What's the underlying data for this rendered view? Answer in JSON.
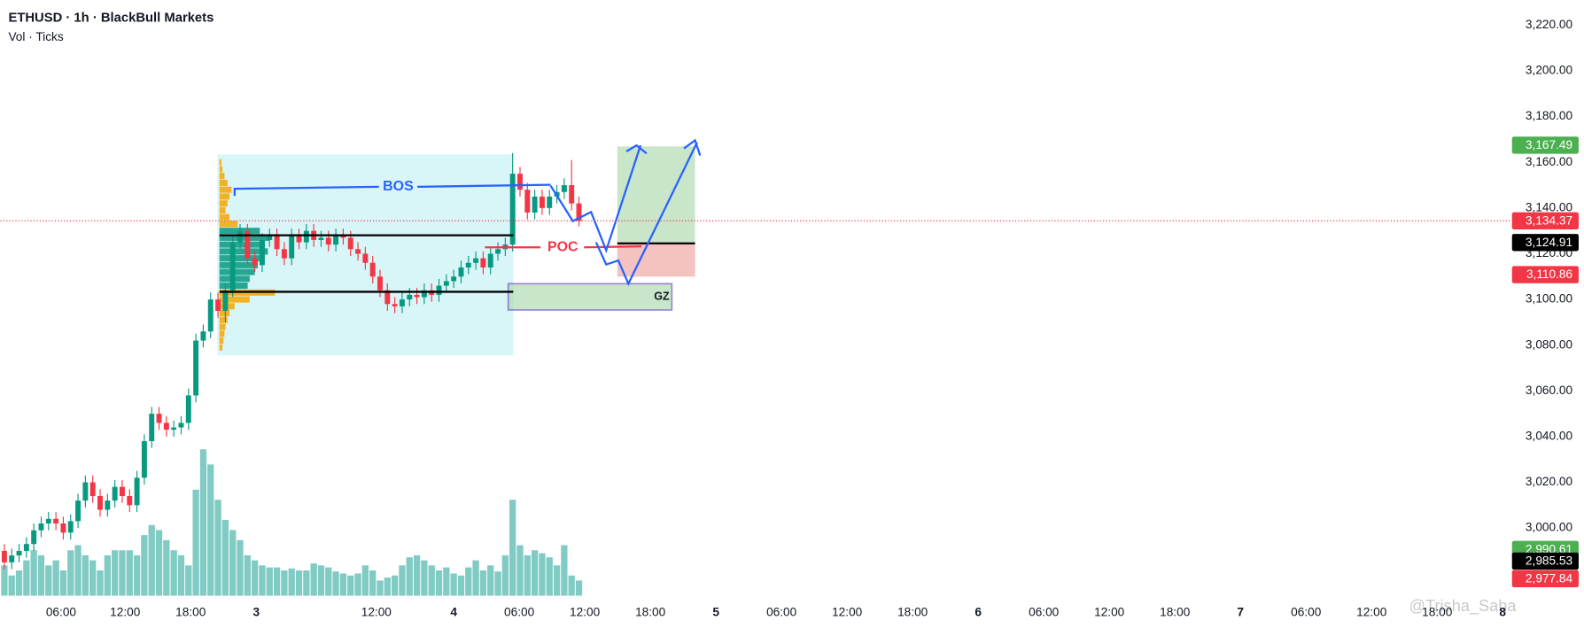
{
  "chart_data": {
    "type": "candlestick",
    "title": "ETHUSD · 1h · BlackBull Markets",
    "subtitle": "Vol · Ticks",
    "watermark": "@Trisha_Saha",
    "up_color": "#089981",
    "down_color": "#f23645",
    "volume_color": "#80cbc4",
    "grid": false,
    "ylim": [
      2970.4,
      3231
    ],
    "yticks": [
      {
        "value": 3000,
        "label": "3,000.00"
      },
      {
        "value": 3020,
        "label": "3,020.00"
      },
      {
        "value": 3040,
        "label": "3,040.00"
      },
      {
        "value": 3060,
        "label": "3,060.00"
      },
      {
        "value": 3080,
        "label": "3,080.00"
      },
      {
        "value": 3100,
        "label": "3,100.00"
      },
      {
        "value": 3120,
        "label": "3,120.00"
      },
      {
        "value": 3140,
        "label": "3,140.00"
      },
      {
        "value": 3160,
        "label": "3,160.00"
      },
      {
        "value": 3180,
        "label": "3,180.00"
      },
      {
        "value": 3200,
        "label": "3,200.00"
      },
      {
        "value": 3220,
        "label": "3,220.00"
      }
    ],
    "xlim": [
      -0.55,
      203.7
    ],
    "xticks": [
      {
        "value": 7.7,
        "label": "06:00"
      },
      {
        "value": 16.4,
        "label": "12:00"
      },
      {
        "value": 25.3,
        "label": "18:00"
      },
      {
        "value": 34.2,
        "label": "3"
      },
      {
        "value": 50.5,
        "label": "12:00"
      },
      {
        "value": 61,
        "label": "4"
      },
      {
        "value": 69.9,
        "label": "06:00"
      },
      {
        "value": 78.8,
        "label": "12:00"
      },
      {
        "value": 87.7,
        "label": "18:00"
      },
      {
        "value": 96.6,
        "label": "5"
      },
      {
        "value": 105.5,
        "label": "06:00"
      },
      {
        "value": 114.4,
        "label": "12:00"
      },
      {
        "value": 123.3,
        "label": "18:00"
      },
      {
        "value": 132.2,
        "label": "6"
      },
      {
        "value": 141.1,
        "label": "06:00"
      },
      {
        "value": 150,
        "label": "12:00"
      },
      {
        "value": 158.9,
        "label": "18:00"
      },
      {
        "value": 167.8,
        "label": "7"
      },
      {
        "value": 176.7,
        "label": "06:00"
      },
      {
        "value": 185.6,
        "label": "12:00"
      },
      {
        "value": 194.5,
        "label": "18:00"
      },
      {
        "value": 203.4,
        "label": "8"
      }
    ],
    "open": [
      2990,
      2985,
      2988,
      2990,
      2993,
      2999,
      3002,
      3004,
      3002,
      2998,
      3003,
      3012,
      3020,
      3014,
      3008,
      3012,
      3018,
      3014,
      3010,
      3022,
      3038,
      3050,
      3046,
      3043,
      3044,
      3046,
      3058,
      3082,
      3086,
      3100,
      3095,
      3104,
      3125,
      3130,
      3118,
      3115,
      3126,
      3128,
      3122,
      3118,
      3128,
      3125,
      3130,
      3126,
      3127,
      3124,
      3128,
      3127,
      3122,
      3120,
      3116,
      3110,
      3104,
      3098,
      3097,
      3100,
      3102,
      3101,
      3104,
      3102,
      3106,
      3108,
      3110,
      3114,
      3116,
      3118,
      3114,
      3120,
      3122,
      3124,
      3155,
      3148,
      3138,
      3145,
      3140,
      3145,
      3147,
      3150,
      3142
    ],
    "high": [
      2993,
      2991,
      2993,
      2996,
      3002,
      3005,
      3007,
      3007,
      3005,
      3006,
      3015,
      3023,
      3023,
      3017,
      3015,
      3021,
      3021,
      3017,
      3025,
      3041,
      3053,
      3053,
      3049,
      3047,
      3049,
      3061,
      3085,
      3089,
      3103,
      3103,
      3107,
      3128,
      3133,
      3133,
      3121,
      3129,
      3131,
      3131,
      3125,
      3131,
      3131,
      3133,
      3133,
      3130,
      3130,
      3131,
      3131,
      3130,
      3125,
      3123,
      3119,
      3113,
      3107,
      3101,
      3103,
      3105,
      3105,
      3107,
      3107,
      3109,
      3111,
      3113,
      3117,
      3119,
      3121,
      3121,
      3123,
      3125,
      3127,
      3164,
      3158,
      3151,
      3148,
      3148,
      3148,
      3150,
      3153,
      3161,
      3145
    ],
    "low": [
      2982,
      2982,
      2985,
      2987,
      2990,
      2996,
      2999,
      2999,
      2995,
      2995,
      3000,
      3009,
      3011,
      3005,
      3005,
      3009,
      3011,
      3007,
      3007,
      3019,
      3035,
      3043,
      3040,
      3040,
      3041,
      3043,
      3055,
      3079,
      3083,
      3092,
      3090,
      3101,
      3122,
      3115,
      3112,
      3112,
      3123,
      3119,
      3115,
      3115,
      3122,
      3122,
      3123,
      3123,
      3121,
      3121,
      3124,
      3119,
      3117,
      3113,
      3107,
      3101,
      3095,
      3094,
      3094,
      3097,
      3098,
      3098,
      3099,
      3099,
      3103,
      3105,
      3107,
      3111,
      3113,
      3111,
      3111,
      3117,
      3119,
      3121,
      3145,
      3135,
      3135,
      3137,
      3137,
      3142,
      3144,
      3139,
      3132
    ],
    "close": [
      2985,
      2988,
      2990,
      2993,
      2999,
      3002,
      3004,
      3002,
      2998,
      3003,
      3012,
      3020,
      3014,
      3008,
      3012,
      3018,
      3014,
      3010,
      3022,
      3038,
      3050,
      3046,
      3043,
      3044,
      3046,
      3058,
      3082,
      3086,
      3100,
      3095,
      3104,
      3125,
      3130,
      3118,
      3115,
      3126,
      3128,
      3122,
      3118,
      3128,
      3125,
      3130,
      3126,
      3127,
      3124,
      3128,
      3127,
      3122,
      3120,
      3116,
      3110,
      3104,
      3098,
      3097,
      3100,
      3102,
      3101,
      3104,
      3102,
      3106,
      3108,
      3110,
      3114,
      3116,
      3118,
      3114,
      3120,
      3122,
      3124,
      3155,
      3148,
      3138,
      3145,
      3140,
      3145,
      3147,
      3150,
      3142,
      3134.37
    ],
    "volume_ylim": [
      0,
      5900
    ],
    "volume": [
      300,
      200,
      250,
      350,
      450,
      400,
      300,
      350,
      250,
      450,
      500,
      400,
      350,
      250,
      400,
      450,
      450,
      450,
      400,
      600,
      700,
      650,
      550,
      450,
      400,
      300,
      1050,
      1450,
      1300,
      950,
      750,
      650,
      550,
      400,
      350,
      300,
      280,
      280,
      250,
      270,
      250,
      250,
      320,
      300,
      280,
      240,
      220,
      200,
      220,
      300,
      250,
      150,
      180,
      200,
      300,
      380,
      400,
      350,
      300,
      250,
      280,
      220,
      200,
      280,
      350,
      250,
      300,
      240,
      400,
      950,
      500,
      400,
      450,
      420,
      380,
      300,
      500,
      200,
      150
    ],
    "volume_profile": {
      "prices": [
        3160,
        3157,
        3154,
        3151,
        3148,
        3145,
        3142,
        3139,
        3136,
        3133,
        3130,
        3127,
        3124,
        3121,
        3118,
        3115,
        3112,
        3109,
        3106,
        3103,
        3100,
        3097,
        3094,
        3091,
        3088,
        3085,
        3082,
        3079
      ],
      "values": [
        2,
        3,
        5,
        8,
        12,
        10,
        8,
        6,
        10,
        18,
        40,
        50,
        45,
        48,
        42,
        38,
        35,
        30,
        28,
        55,
        30,
        15,
        10,
        8,
        6,
        5,
        4,
        3
      ],
      "colors": [
        "#f7a600",
        "#f7a600",
        "#f7a600",
        "#f7a600",
        "#f7a600",
        "#f7a600",
        "#f7a600",
        "#f7a600",
        "#f7a600",
        "#f7a600",
        "#089981",
        "#089981",
        "#089981",
        "#089981",
        "#089981",
        "#089981",
        "#089981",
        "#089981",
        "#089981",
        "#f7a600",
        "#f7a600",
        "#f7a600",
        "#f7a600",
        "#f7a600",
        "#f7a600",
        "#f7a600",
        "#f7a600",
        "#f7a600"
      ]
    },
    "annotations": {
      "bos": "BOS",
      "poc": "POC",
      "gz": "GZ"
    },
    "price_markers": [
      {
        "value": 3167.49,
        "label": "3,167.49",
        "color": "#4caf50"
      },
      {
        "value": 3134.37,
        "label": "3,134.37",
        "color": "#f23645"
      },
      {
        "value": 3124.91,
        "label": "3,124.91",
        "color": "#000000"
      },
      {
        "value": 3110.86,
        "label": "3,110.86",
        "color": "#f23645"
      },
      {
        "value": 2990.61,
        "label": "2,990.61",
        "color": "#4caf50"
      },
      {
        "value": 2985.53,
        "label": "2,985.53",
        "color": "#000000"
      },
      {
        "value": 2977.84,
        "label": "2,977.84",
        "color": "#f23645"
      }
    ]
  }
}
